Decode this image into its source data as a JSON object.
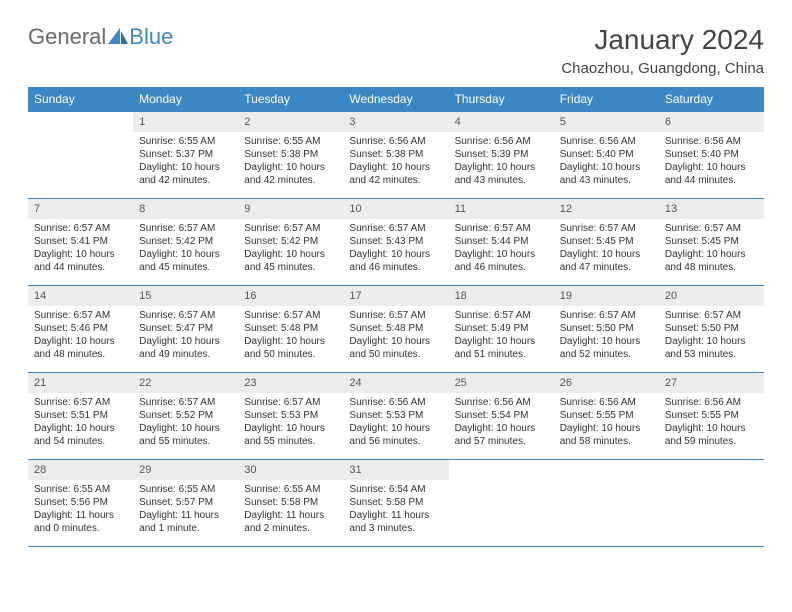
{
  "brand": {
    "part1": "General",
    "part2": "Blue"
  },
  "title": "January 2024",
  "location": "Chaozhou, Guangdong, China",
  "colors": {
    "header_bg": "#3b88c4",
    "header_text": "#ffffff",
    "daynum_bg": "#ececec",
    "daynum_text": "#555555",
    "body_text": "#333333",
    "rule": "#3b88c4",
    "page_bg": "#ffffff",
    "title_text": "#444444"
  },
  "fonts": {
    "title_size_pt": 21,
    "location_size_pt": 11,
    "weekday_size_pt": 9,
    "daynum_size_pt": 8,
    "body_size_pt": 7.5
  },
  "weekdays": [
    "Sunday",
    "Monday",
    "Tuesday",
    "Wednesday",
    "Thursday",
    "Friday",
    "Saturday"
  ],
  "weeks": [
    [
      {
        "num": "",
        "sunrise": "",
        "sunset": "",
        "daylight": ""
      },
      {
        "num": "1",
        "sunrise": "Sunrise: 6:55 AM",
        "sunset": "Sunset: 5:37 PM",
        "daylight": "Daylight: 10 hours and 42 minutes."
      },
      {
        "num": "2",
        "sunrise": "Sunrise: 6:55 AM",
        "sunset": "Sunset: 5:38 PM",
        "daylight": "Daylight: 10 hours and 42 minutes."
      },
      {
        "num": "3",
        "sunrise": "Sunrise: 6:56 AM",
        "sunset": "Sunset: 5:38 PM",
        "daylight": "Daylight: 10 hours and 42 minutes."
      },
      {
        "num": "4",
        "sunrise": "Sunrise: 6:56 AM",
        "sunset": "Sunset: 5:39 PM",
        "daylight": "Daylight: 10 hours and 43 minutes."
      },
      {
        "num": "5",
        "sunrise": "Sunrise: 6:56 AM",
        "sunset": "Sunset: 5:40 PM",
        "daylight": "Daylight: 10 hours and 43 minutes."
      },
      {
        "num": "6",
        "sunrise": "Sunrise: 6:56 AM",
        "sunset": "Sunset: 5:40 PM",
        "daylight": "Daylight: 10 hours and 44 minutes."
      }
    ],
    [
      {
        "num": "7",
        "sunrise": "Sunrise: 6:57 AM",
        "sunset": "Sunset: 5:41 PM",
        "daylight": "Daylight: 10 hours and 44 minutes."
      },
      {
        "num": "8",
        "sunrise": "Sunrise: 6:57 AM",
        "sunset": "Sunset: 5:42 PM",
        "daylight": "Daylight: 10 hours and 45 minutes."
      },
      {
        "num": "9",
        "sunrise": "Sunrise: 6:57 AM",
        "sunset": "Sunset: 5:42 PM",
        "daylight": "Daylight: 10 hours and 45 minutes."
      },
      {
        "num": "10",
        "sunrise": "Sunrise: 6:57 AM",
        "sunset": "Sunset: 5:43 PM",
        "daylight": "Daylight: 10 hours and 46 minutes."
      },
      {
        "num": "11",
        "sunrise": "Sunrise: 6:57 AM",
        "sunset": "Sunset: 5:44 PM",
        "daylight": "Daylight: 10 hours and 46 minutes."
      },
      {
        "num": "12",
        "sunrise": "Sunrise: 6:57 AM",
        "sunset": "Sunset: 5:45 PM",
        "daylight": "Daylight: 10 hours and 47 minutes."
      },
      {
        "num": "13",
        "sunrise": "Sunrise: 6:57 AM",
        "sunset": "Sunset: 5:45 PM",
        "daylight": "Daylight: 10 hours and 48 minutes."
      }
    ],
    [
      {
        "num": "14",
        "sunrise": "Sunrise: 6:57 AM",
        "sunset": "Sunset: 5:46 PM",
        "daylight": "Daylight: 10 hours and 48 minutes."
      },
      {
        "num": "15",
        "sunrise": "Sunrise: 6:57 AM",
        "sunset": "Sunset: 5:47 PM",
        "daylight": "Daylight: 10 hours and 49 minutes."
      },
      {
        "num": "16",
        "sunrise": "Sunrise: 6:57 AM",
        "sunset": "Sunset: 5:48 PM",
        "daylight": "Daylight: 10 hours and 50 minutes."
      },
      {
        "num": "17",
        "sunrise": "Sunrise: 6:57 AM",
        "sunset": "Sunset: 5:48 PM",
        "daylight": "Daylight: 10 hours and 50 minutes."
      },
      {
        "num": "18",
        "sunrise": "Sunrise: 6:57 AM",
        "sunset": "Sunset: 5:49 PM",
        "daylight": "Daylight: 10 hours and 51 minutes."
      },
      {
        "num": "19",
        "sunrise": "Sunrise: 6:57 AM",
        "sunset": "Sunset: 5:50 PM",
        "daylight": "Daylight: 10 hours and 52 minutes."
      },
      {
        "num": "20",
        "sunrise": "Sunrise: 6:57 AM",
        "sunset": "Sunset: 5:50 PM",
        "daylight": "Daylight: 10 hours and 53 minutes."
      }
    ],
    [
      {
        "num": "21",
        "sunrise": "Sunrise: 6:57 AM",
        "sunset": "Sunset: 5:51 PM",
        "daylight": "Daylight: 10 hours and 54 minutes."
      },
      {
        "num": "22",
        "sunrise": "Sunrise: 6:57 AM",
        "sunset": "Sunset: 5:52 PM",
        "daylight": "Daylight: 10 hours and 55 minutes."
      },
      {
        "num": "23",
        "sunrise": "Sunrise: 6:57 AM",
        "sunset": "Sunset: 5:53 PM",
        "daylight": "Daylight: 10 hours and 55 minutes."
      },
      {
        "num": "24",
        "sunrise": "Sunrise: 6:56 AM",
        "sunset": "Sunset: 5:53 PM",
        "daylight": "Daylight: 10 hours and 56 minutes."
      },
      {
        "num": "25",
        "sunrise": "Sunrise: 6:56 AM",
        "sunset": "Sunset: 5:54 PM",
        "daylight": "Daylight: 10 hours and 57 minutes."
      },
      {
        "num": "26",
        "sunrise": "Sunrise: 6:56 AM",
        "sunset": "Sunset: 5:55 PM",
        "daylight": "Daylight: 10 hours and 58 minutes."
      },
      {
        "num": "27",
        "sunrise": "Sunrise: 6:56 AM",
        "sunset": "Sunset: 5:55 PM",
        "daylight": "Daylight: 10 hours and 59 minutes."
      }
    ],
    [
      {
        "num": "28",
        "sunrise": "Sunrise: 6:55 AM",
        "sunset": "Sunset: 5:56 PM",
        "daylight": "Daylight: 11 hours and 0 minutes."
      },
      {
        "num": "29",
        "sunrise": "Sunrise: 6:55 AM",
        "sunset": "Sunset: 5:57 PM",
        "daylight": "Daylight: 11 hours and 1 minute."
      },
      {
        "num": "30",
        "sunrise": "Sunrise: 6:55 AM",
        "sunset": "Sunset: 5:58 PM",
        "daylight": "Daylight: 11 hours and 2 minutes."
      },
      {
        "num": "31",
        "sunrise": "Sunrise: 6:54 AM",
        "sunset": "Sunset: 5:58 PM",
        "daylight": "Daylight: 11 hours and 3 minutes."
      },
      {
        "num": "",
        "sunrise": "",
        "sunset": "",
        "daylight": ""
      },
      {
        "num": "",
        "sunrise": "",
        "sunset": "",
        "daylight": ""
      },
      {
        "num": "",
        "sunrise": "",
        "sunset": "",
        "daylight": ""
      }
    ]
  ]
}
